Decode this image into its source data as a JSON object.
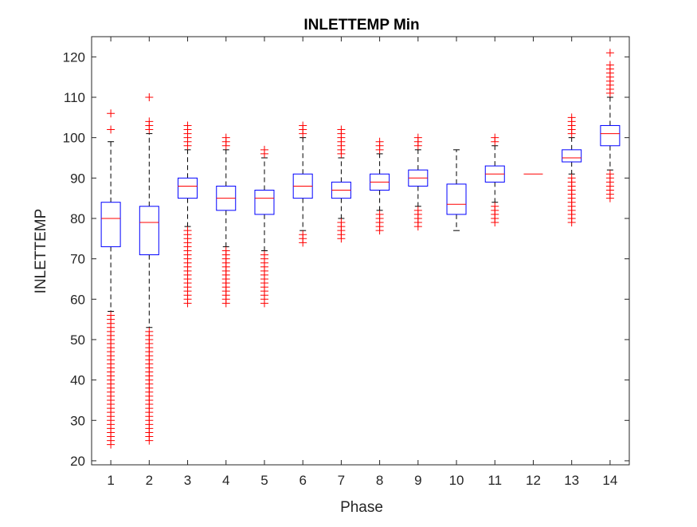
{
  "chart_data": {
    "type": "box",
    "title": "INLETTEMP Min",
    "xlabel": "Phase",
    "ylabel": "INLETTEMP",
    "ylim": [
      19,
      125
    ],
    "yticks": [
      20,
      30,
      40,
      50,
      60,
      70,
      80,
      90,
      100,
      110,
      120
    ],
    "categories": [
      "1",
      "2",
      "3",
      "4",
      "5",
      "6",
      "7",
      "8",
      "9",
      "10",
      "11",
      "12",
      "13",
      "14"
    ],
    "grid": false,
    "colors": {
      "box": "#0000ff",
      "median": "#ff0000",
      "whisker": "#000000",
      "outlier": "#ff0000",
      "axis": "#262626"
    },
    "boxes": [
      {
        "category": "1",
        "q1": 73,
        "median": 80,
        "q3": 84,
        "whisker_low": 57,
        "whisker_high": 99,
        "outliers": [
          24,
          25,
          26,
          27,
          28,
          29,
          30,
          31,
          32,
          33,
          34,
          35,
          36,
          37,
          38,
          39,
          40,
          41,
          42,
          43,
          44,
          45,
          46,
          47,
          48,
          49,
          50,
          51,
          52,
          53,
          54,
          55,
          56,
          102,
          106
        ]
      },
      {
        "category": "2",
        "q1": 71,
        "median": 79,
        "q3": 83,
        "whisker_low": 53,
        "whisker_high": 101,
        "outliers": [
          25,
          26,
          27,
          28,
          29,
          30,
          31,
          32,
          33,
          34,
          35,
          36,
          37,
          38,
          39,
          40,
          41,
          42,
          43,
          44,
          45,
          46,
          47,
          48,
          49,
          50,
          51,
          52,
          102,
          103,
          104,
          110
        ]
      },
      {
        "category": "3",
        "q1": 85,
        "median": 88,
        "q3": 90,
        "whisker_low": 78,
        "whisker_high": 97,
        "outliers": [
          59,
          60,
          61,
          62,
          63,
          64,
          65,
          66,
          67,
          68,
          69,
          70,
          71,
          72,
          73,
          74,
          75,
          76,
          77,
          98,
          99,
          100,
          101,
          102,
          103
        ]
      },
      {
        "category": "4",
        "q1": 82,
        "median": 85,
        "q3": 88,
        "whisker_low": 73,
        "whisker_high": 97,
        "outliers": [
          59,
          60,
          61,
          62,
          63,
          64,
          65,
          66,
          67,
          68,
          69,
          70,
          71,
          72,
          98,
          99,
          100
        ]
      },
      {
        "category": "5",
        "q1": 81,
        "median": 85,
        "q3": 87,
        "whisker_low": 72,
        "whisker_high": 95,
        "outliers": [
          59,
          60,
          61,
          62,
          63,
          64,
          65,
          66,
          67,
          68,
          69,
          70,
          71,
          96,
          97
        ]
      },
      {
        "category": "6",
        "q1": 85,
        "median": 88,
        "q3": 91,
        "whisker_low": 77,
        "whisker_high": 100,
        "outliers": [
          74,
          75,
          76,
          101,
          102,
          103
        ]
      },
      {
        "category": "7",
        "q1": 85,
        "median": 87,
        "q3": 89,
        "whisker_low": 80,
        "whisker_high": 95,
        "outliers": [
          75,
          76,
          77,
          78,
          79,
          96,
          97,
          98,
          99,
          100,
          101,
          102
        ]
      },
      {
        "category": "8",
        "q1": 87,
        "median": 89,
        "q3": 91,
        "whisker_low": 82,
        "whisker_high": 96,
        "outliers": [
          77,
          78,
          79,
          80,
          81,
          97,
          98,
          99
        ]
      },
      {
        "category": "9",
        "q1": 88,
        "median": 90,
        "q3": 92,
        "whisker_low": 83,
        "whisker_high": 97,
        "outliers": [
          78,
          79,
          80,
          81,
          82,
          98,
          99,
          100
        ]
      },
      {
        "category": "10",
        "q1": 81,
        "median": 83.5,
        "q3": 88.5,
        "whisker_low": 77,
        "whisker_high": 97,
        "outliers": []
      },
      {
        "category": "11",
        "q1": 89,
        "median": 91,
        "q3": 93,
        "whisker_low": 84,
        "whisker_high": 98,
        "outliers": [
          79,
          80,
          81,
          82,
          83,
          99,
          100
        ]
      },
      {
        "category": "12",
        "q1": 91,
        "median": 91,
        "q3": 91,
        "whisker_low": 91,
        "whisker_high": 91,
        "outliers": []
      },
      {
        "category": "13",
        "q1": 94,
        "median": 95,
        "q3": 97,
        "whisker_low": 91,
        "whisker_high": 100,
        "outliers": [
          79,
          80,
          81,
          82,
          83,
          84,
          85,
          86,
          87,
          88,
          89,
          90,
          101,
          102,
          103,
          104,
          105
        ]
      },
      {
        "category": "14",
        "q1": 98,
        "median": 101,
        "q3": 103,
        "whisker_low": 92,
        "whisker_high": 110,
        "outliers": [
          85,
          86,
          87,
          88,
          89,
          90,
          91,
          111,
          112,
          113,
          114,
          115,
          116,
          117,
          118,
          121
        ]
      }
    ]
  }
}
